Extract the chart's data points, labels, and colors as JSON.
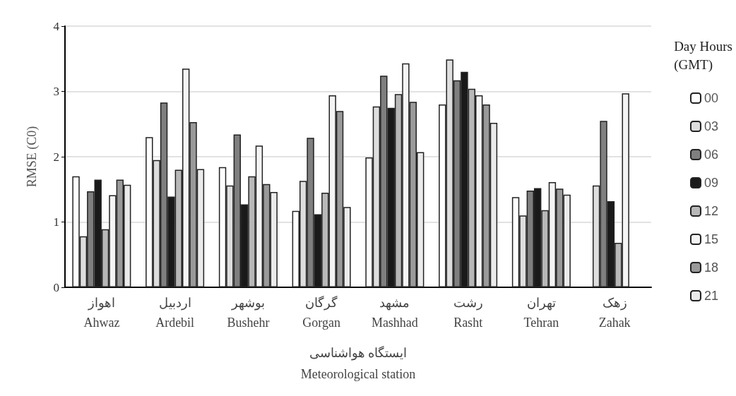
{
  "chart_data": {
    "type": "bar",
    "ylabel": "RMSE (C0)",
    "xlabel": "ایستگاه هواشناسی\nMeteorological station",
    "legend_title": "Day Hours\n(GMT)",
    "categories": [
      "اهواز\nAhwaz",
      "اردبیل\nArdebil",
      "بوشهر\nBushehr",
      "گرگان\nGorgan",
      "مشهد\nMashhad",
      "رشت\nRasht",
      "تهران\nTehran",
      "زهک\nZahak"
    ],
    "series": [
      {
        "name": "00",
        "color": "#ffffff",
        "values": [
          1.7,
          2.3,
          1.84,
          1.17,
          1.99,
          2.8,
          1.38,
          null
        ]
      },
      {
        "name": "03",
        "color": "#dedede",
        "values": [
          0.78,
          1.95,
          1.56,
          1.63,
          2.77,
          3.49,
          1.1,
          1.56
        ]
      },
      {
        "name": "06",
        "color": "#7f7f7f",
        "values": [
          1.47,
          2.83,
          2.34,
          2.29,
          3.24,
          3.17,
          1.48,
          2.55
        ]
      },
      {
        "name": "09",
        "color": "#1a1a1a",
        "values": [
          1.65,
          1.39,
          1.27,
          1.12,
          2.75,
          3.3,
          1.52,
          1.32
        ]
      },
      {
        "name": "12",
        "color": "#b8b8b8",
        "values": [
          0.89,
          1.8,
          1.7,
          1.45,
          2.96,
          3.04,
          1.18,
          0.68
        ]
      },
      {
        "name": "15",
        "color": "#f4f4f4",
        "values": [
          1.41,
          3.35,
          2.17,
          2.94,
          3.43,
          2.94,
          1.61,
          2.97
        ]
      },
      {
        "name": "18",
        "color": "#9a9a9a",
        "values": [
          1.65,
          2.53,
          1.58,
          2.7,
          2.84,
          2.8,
          1.51,
          null
        ]
      },
      {
        "name": "21",
        "color": "#ebebeb",
        "values": [
          1.57,
          1.81,
          1.46,
          1.23,
          2.07,
          2.52,
          1.42,
          null
        ]
      }
    ],
    "ylim": [
      0,
      4
    ],
    "yticks": [
      0,
      1,
      2,
      3,
      4
    ],
    "grid": "y",
    "legend": "right"
  }
}
